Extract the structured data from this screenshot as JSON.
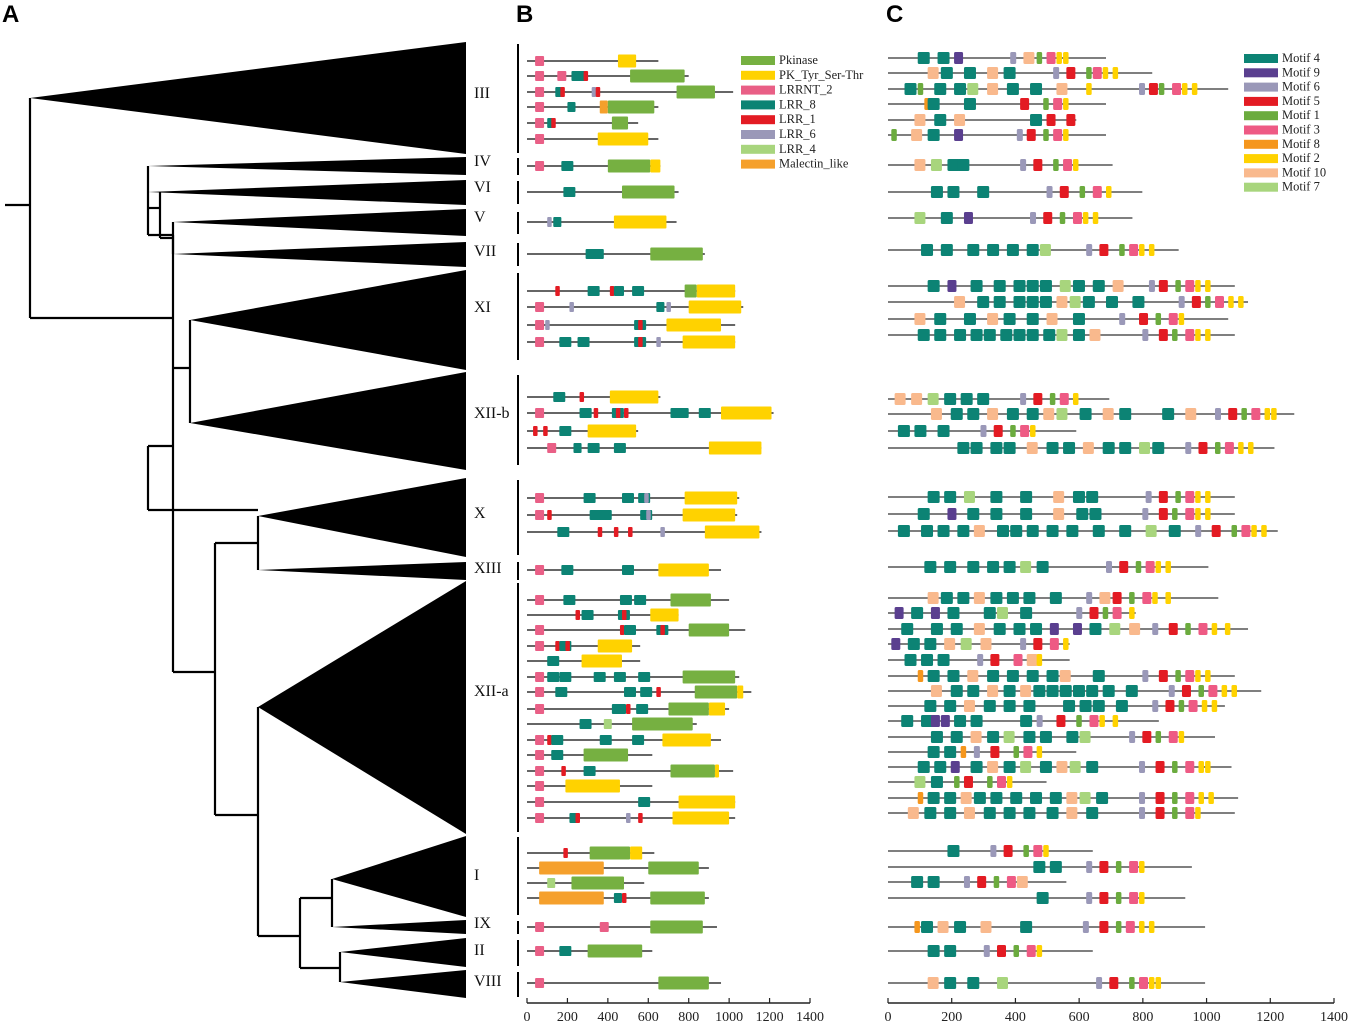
{
  "panels": {
    "a": "A",
    "b": "B",
    "c": "C"
  },
  "tree": {
    "clades": [
      "III",
      "IV",
      "VI",
      "V",
      "VII",
      "XI",
      "XII-b",
      "X",
      "XIII",
      "XII-a",
      "I",
      "IX",
      "II",
      "VIII"
    ]
  },
  "domain_legend": {
    "items": [
      {
        "label": "Pkinase",
        "color": "#76b041"
      },
      {
        "label": "PK_Tyr_Ser-Thr",
        "color": "#ffd200"
      },
      {
        "label": "LRRNT_2",
        "color": "#e95f86"
      },
      {
        "label": "LRR_8",
        "color": "#0c8374"
      },
      {
        "label": "LRR_1",
        "color": "#e31b23"
      },
      {
        "label": "LRR_6",
        "color": "#9a98b8"
      },
      {
        "label": "LRR_4",
        "color": "#a8d57d"
      },
      {
        "label": "Malectin_like",
        "color": "#f5a02c"
      }
    ]
  },
  "motif_legend": {
    "items": [
      {
        "label": "Motif 4",
        "color": "#0c8374"
      },
      {
        "label": "Motif 9",
        "color": "#5a3f8f"
      },
      {
        "label": "Motif 6",
        "color": "#9a98b8"
      },
      {
        "label": "Motif 5",
        "color": "#e31b23"
      },
      {
        "label": "Motif 1",
        "color": "#6bab3e"
      },
      {
        "label": "Motif 3",
        "color": "#ee5a84"
      },
      {
        "label": "Motif 8",
        "color": "#f5961d"
      },
      {
        "label": "Motif 2",
        "color": "#ffd200"
      },
      {
        "label": "Motif 10",
        "color": "#f9b98d"
      },
      {
        "label": "Motif 7",
        "color": "#a8d57d"
      }
    ]
  },
  "axis_b": {
    "min": 0,
    "max": 1400,
    "tick_labels": [
      "0",
      "200",
      "400",
      "600",
      "800",
      "1000",
      "1200",
      "1400"
    ]
  },
  "axis_c": {
    "min": 0,
    "max": 1400,
    "tick_labels": [
      "0",
      "200",
      "400",
      "600",
      "800",
      "1000",
      "1200",
      "1400"
    ]
  }
}
